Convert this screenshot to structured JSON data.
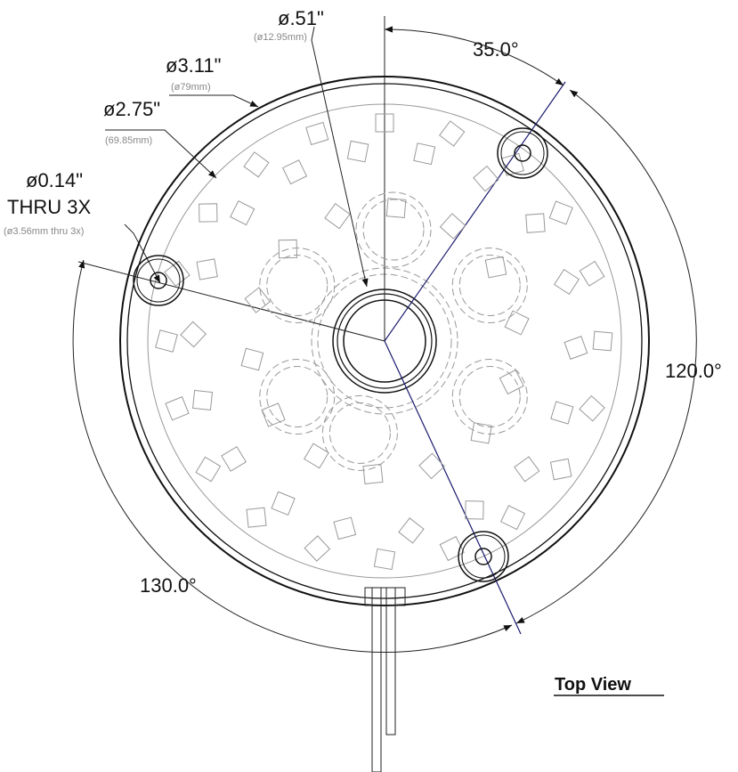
{
  "title": "Top View",
  "dimensions": [
    {
      "label": "ø.51\"",
      "metric": "(ø12.95mm)"
    },
    {
      "label": "ø3.11\"",
      "metric": "(ø79mm)"
    },
    {
      "label": "ø2.75\"",
      "metric": "(69.85mm)"
    },
    {
      "label": "ø0.14\"",
      "note": "THRU 3X",
      "metric": "(ø3.56mm thru 3x)"
    }
  ],
  "angles": [
    "35.0°",
    "120.0°",
    "130.0°"
  ]
}
